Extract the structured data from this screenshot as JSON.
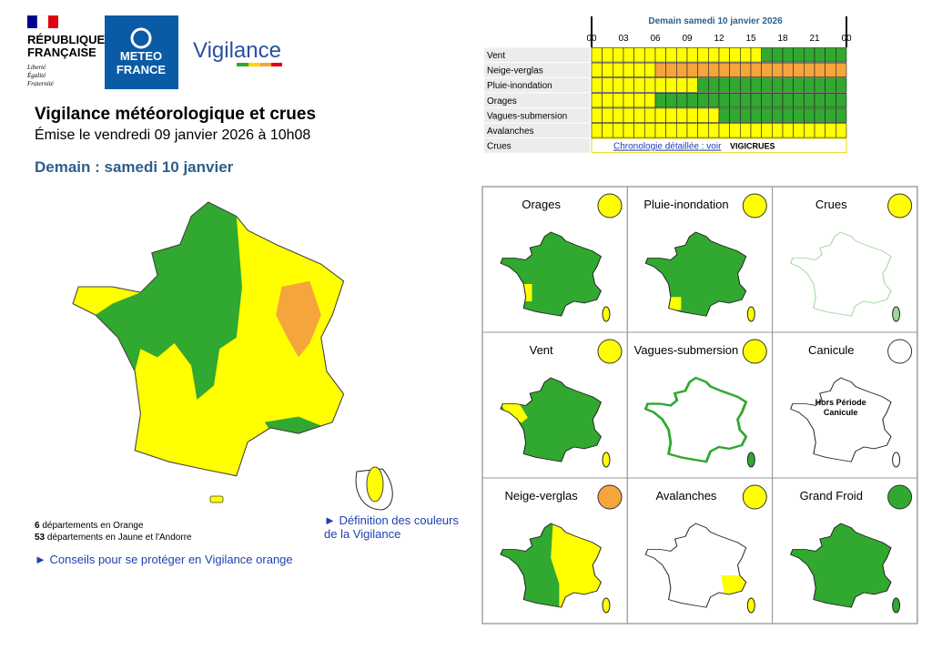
{
  "header": {
    "republic": [
      "RÉPUBLIQUE",
      "FRANÇAISE"
    ],
    "motto": [
      "Liberté",
      "Égalité",
      "Fraternité"
    ],
    "brand": [
      "METEO",
      "FRANCE"
    ],
    "product": "Vigilance"
  },
  "title": "Vigilance météorologique et crues",
  "issued": "Émise le vendredi 09 janvier 2026 à 10h08",
  "day": "Demain : samedi 10 janvier",
  "timeline": {
    "title": "Demain samedi 10 janvier 2026",
    "hours": [
      "00",
      "03",
      "06",
      "09",
      "12",
      "15",
      "18",
      "21",
      "00"
    ],
    "palette": {
      "green": "#31a82f",
      "yellow": "#ffff00",
      "orange": "#f6a53c"
    },
    "rows": [
      {
        "label": "Vent",
        "levels": [
          "yellow",
          "yellow",
          "yellow",
          "yellow",
          "yellow",
          "yellow",
          "yellow",
          "yellow",
          "yellow",
          "yellow",
          "yellow",
          "yellow",
          "yellow",
          "yellow",
          "yellow",
          "yellow",
          "green",
          "green",
          "green",
          "green",
          "green",
          "green",
          "green",
          "green"
        ]
      },
      {
        "label": "Neige-verglas",
        "levels": [
          "yellow",
          "yellow",
          "yellow",
          "yellow",
          "yellow",
          "yellow",
          "orange",
          "orange",
          "orange",
          "orange",
          "orange",
          "orange",
          "orange",
          "orange",
          "orange",
          "orange",
          "orange",
          "orange",
          "orange",
          "orange",
          "orange",
          "orange",
          "orange",
          "orange"
        ]
      },
      {
        "label": "Pluie-inondation",
        "levels": [
          "yellow",
          "yellow",
          "yellow",
          "yellow",
          "yellow",
          "yellow",
          "yellow",
          "yellow",
          "yellow",
          "yellow",
          "green",
          "green",
          "green",
          "green",
          "green",
          "green",
          "green",
          "green",
          "green",
          "green",
          "green",
          "green",
          "green",
          "green"
        ]
      },
      {
        "label": "Orages",
        "levels": [
          "yellow",
          "yellow",
          "yellow",
          "yellow",
          "yellow",
          "yellow",
          "green",
          "green",
          "green",
          "green",
          "green",
          "green",
          "green",
          "green",
          "green",
          "green",
          "green",
          "green",
          "green",
          "green",
          "green",
          "green",
          "green",
          "green"
        ]
      },
      {
        "label": "Vagues-submersion",
        "levels": [
          "yellow",
          "yellow",
          "yellow",
          "yellow",
          "yellow",
          "yellow",
          "yellow",
          "yellow",
          "yellow",
          "yellow",
          "yellow",
          "yellow",
          "green",
          "green",
          "green",
          "green",
          "green",
          "green",
          "green",
          "green",
          "green",
          "green",
          "green",
          "green"
        ]
      },
      {
        "label": "Avalanches",
        "levels": [
          "yellow",
          "yellow",
          "yellow",
          "yellow",
          "yellow",
          "yellow",
          "yellow",
          "yellow",
          "yellow",
          "yellow",
          "yellow",
          "yellow",
          "yellow",
          "yellow",
          "yellow",
          "yellow",
          "yellow",
          "yellow",
          "yellow",
          "yellow",
          "yellow",
          "yellow",
          "yellow",
          "yellow"
        ]
      }
    ],
    "crues": {
      "label": "Crues",
      "link": "Chronologie détaillée : voir",
      "logo": "VIGICRUES"
    }
  },
  "summary": [
    {
      "count": 6,
      "text": "départements en Orange"
    },
    {
      "count": 53,
      "text": "départements en Jaune et l'Andorre"
    }
  ],
  "links": {
    "advice": "► Conseils pour se protéger en Vigilance orange",
    "definition": [
      "► Définition des couleurs",
      "de la Vigilance"
    ]
  },
  "panels": [
    {
      "title": "Orages",
      "icon_color": "#ffff00",
      "map_color": "#31a82f",
      "accent_color": "#ffff00"
    },
    {
      "title": "Pluie-inondation",
      "icon_color": "#ffff00",
      "map_color": "#31a82f",
      "accent_color": "#ffff00"
    },
    {
      "title": "Crues",
      "icon_color": "#ffff00",
      "map_color": "#ffffff",
      "accent_color": "#9fd49a"
    },
    {
      "title": "Vent",
      "icon_color": "#ffff00",
      "map_color": "#31a82f",
      "accent_color": "#ffff00"
    },
    {
      "title": "Vagues-submersion",
      "icon_color": "#ffff00",
      "map_color": "#ffffff",
      "accent_color": "#31a82f"
    },
    {
      "title": "Canicule",
      "icon_color": "#ffffff",
      "map_color": "#ffffff",
      "note": [
        "Hors Période",
        "Canicule"
      ]
    },
    {
      "title": "Neige-verglas",
      "icon_color": "#f6a53c",
      "map_color": "#31a82f",
      "accent_color": "#ffff00"
    },
    {
      "title": "Avalanches",
      "icon_color": "#ffff00",
      "map_color": "#ffffff",
      "accent_color": "#ffff00"
    },
    {
      "title": "Grand Froid",
      "icon_color": "#31a82f",
      "map_color": "#31a82f"
    }
  ]
}
